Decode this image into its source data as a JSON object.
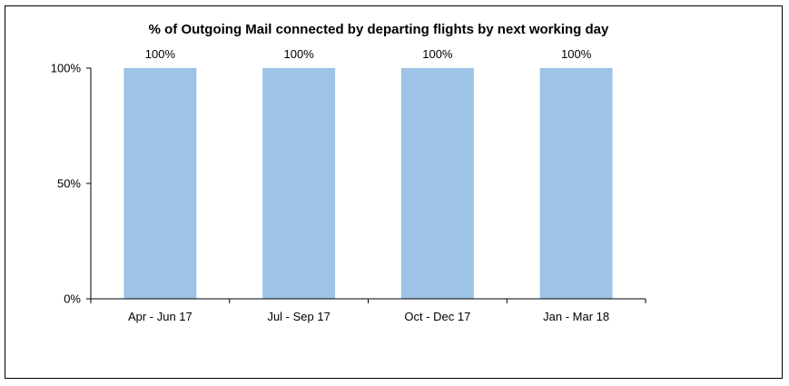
{
  "chart_data": {
    "type": "bar",
    "title": "% of Outgoing Mail connected by departing flights by next working day",
    "xlabel": "",
    "ylabel": "",
    "categories": [
      "Apr - Jun 17",
      "Jul - Sep 17",
      "Oct - Dec 17",
      "Jan - Mar 18"
    ],
    "values": [
      100,
      100,
      100,
      100
    ],
    "data_labels": [
      "100%",
      "100%",
      "100%",
      "100%"
    ],
    "ylim": [
      0,
      100
    ],
    "y_ticks": [
      0,
      50,
      100
    ],
    "y_tick_labels": [
      "0%",
      "50%",
      "100%"
    ],
    "grid": false,
    "legend": "none",
    "bar_color": "#9DC3E6"
  }
}
